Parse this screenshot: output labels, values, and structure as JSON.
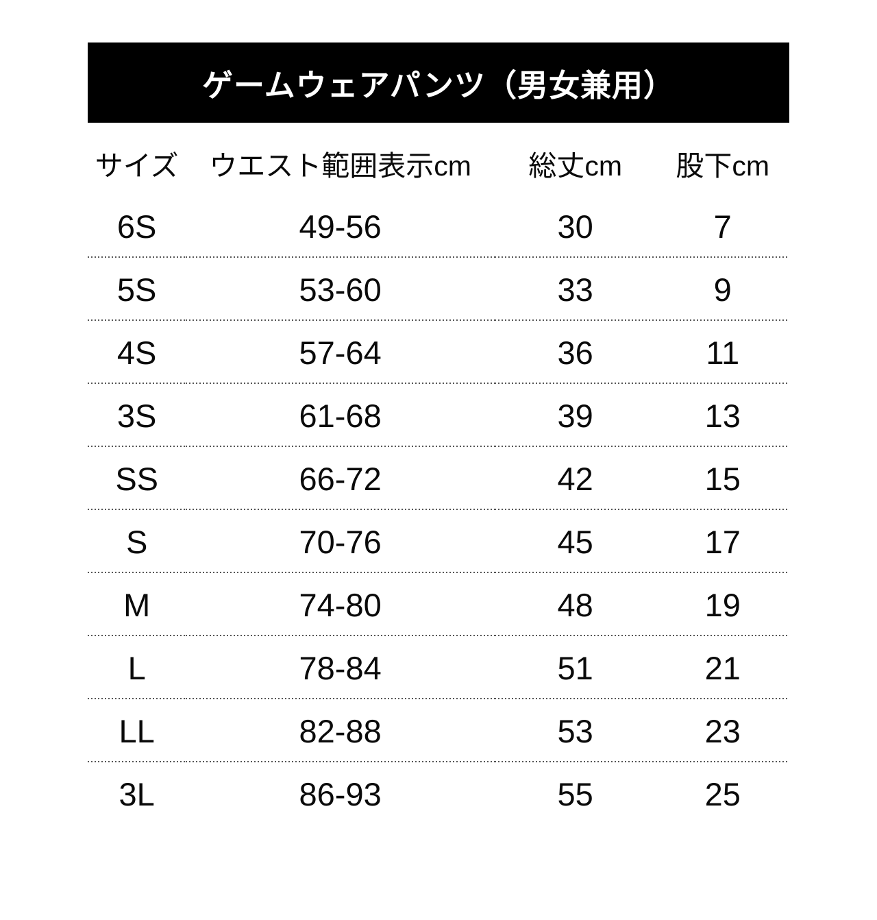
{
  "banner": {
    "title": "ゲームウェアパンツ（男女兼用）",
    "bg_color": "#000000",
    "text_color": "#ffffff"
  },
  "table": {
    "columns": [
      {
        "key": "size",
        "label": "サイズ"
      },
      {
        "key": "waist",
        "label": "ウエスト範囲表示cm"
      },
      {
        "key": "length",
        "label": "総丈cm"
      },
      {
        "key": "inseam",
        "label": "股下cm"
      }
    ],
    "rows": [
      {
        "size": "6S",
        "waist": "49-56",
        "length": "30",
        "inseam": "7"
      },
      {
        "size": "5S",
        "waist": "53-60",
        "length": "33",
        "inseam": "9"
      },
      {
        "size": "4S",
        "waist": "57-64",
        "length": "36",
        "inseam": "11"
      },
      {
        "size": "3S",
        "waist": "61-68",
        "length": "39",
        "inseam": "13"
      },
      {
        "size": "SS",
        "waist": "66-72",
        "length": "42",
        "inseam": "15"
      },
      {
        "size": "S",
        "waist": "70-76",
        "length": "45",
        "inseam": "17"
      },
      {
        "size": "M",
        "waist": "74-80",
        "length": "48",
        "inseam": "19"
      },
      {
        "size": "L",
        "waist": "78-84",
        "length": "51",
        "inseam": "21"
      },
      {
        "size": "LL",
        "waist": "82-88",
        "length": "53",
        "inseam": "23"
      },
      {
        "size": "3L",
        "waist": "86-93",
        "length": "55",
        "inseam": "25"
      }
    ],
    "divider_color": "#555555"
  }
}
